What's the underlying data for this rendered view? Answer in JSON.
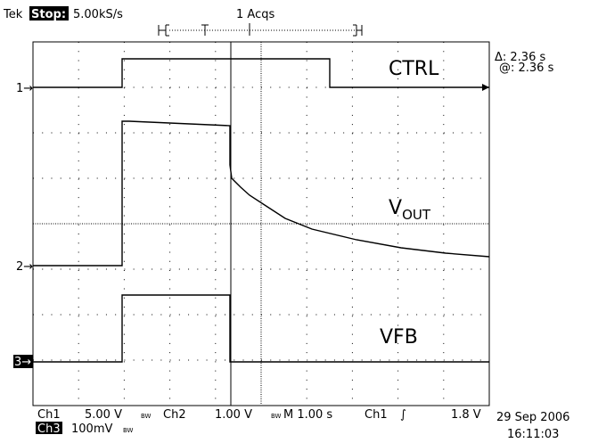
{
  "header": {
    "brand": "Tek",
    "state": "Stop:",
    "rate": "5.00kS/s",
    "acqs": "1 Acqs"
  },
  "cursor": {
    "delta": "Δ: 2.36 s",
    "at": "@: 2.36 s"
  },
  "traces": {
    "ctrl": "CTRL",
    "vout": "V",
    "vout_sub": "OUT",
    "vfb": "VFB"
  },
  "markers": {
    "ch1": "1→",
    "ch2": "2→",
    "ch3": "3→"
  },
  "footer": {
    "ch1": "Ch1",
    "ch1_scale": "5.00 V",
    "bw1": "BW",
    "ch2": "Ch2",
    "ch2_scale": "1.00 V",
    "bw2": "BW",
    "timebase": "M 1.00 s",
    "trig_src": "Ch1",
    "trig_slope": "∫",
    "trig_level": "1.8 V",
    "ch3": "Ch3",
    "ch3_scale": "100mV",
    "bw3": "BW",
    "date": "29 Sep 2006",
    "time": "16:11:03"
  }
}
